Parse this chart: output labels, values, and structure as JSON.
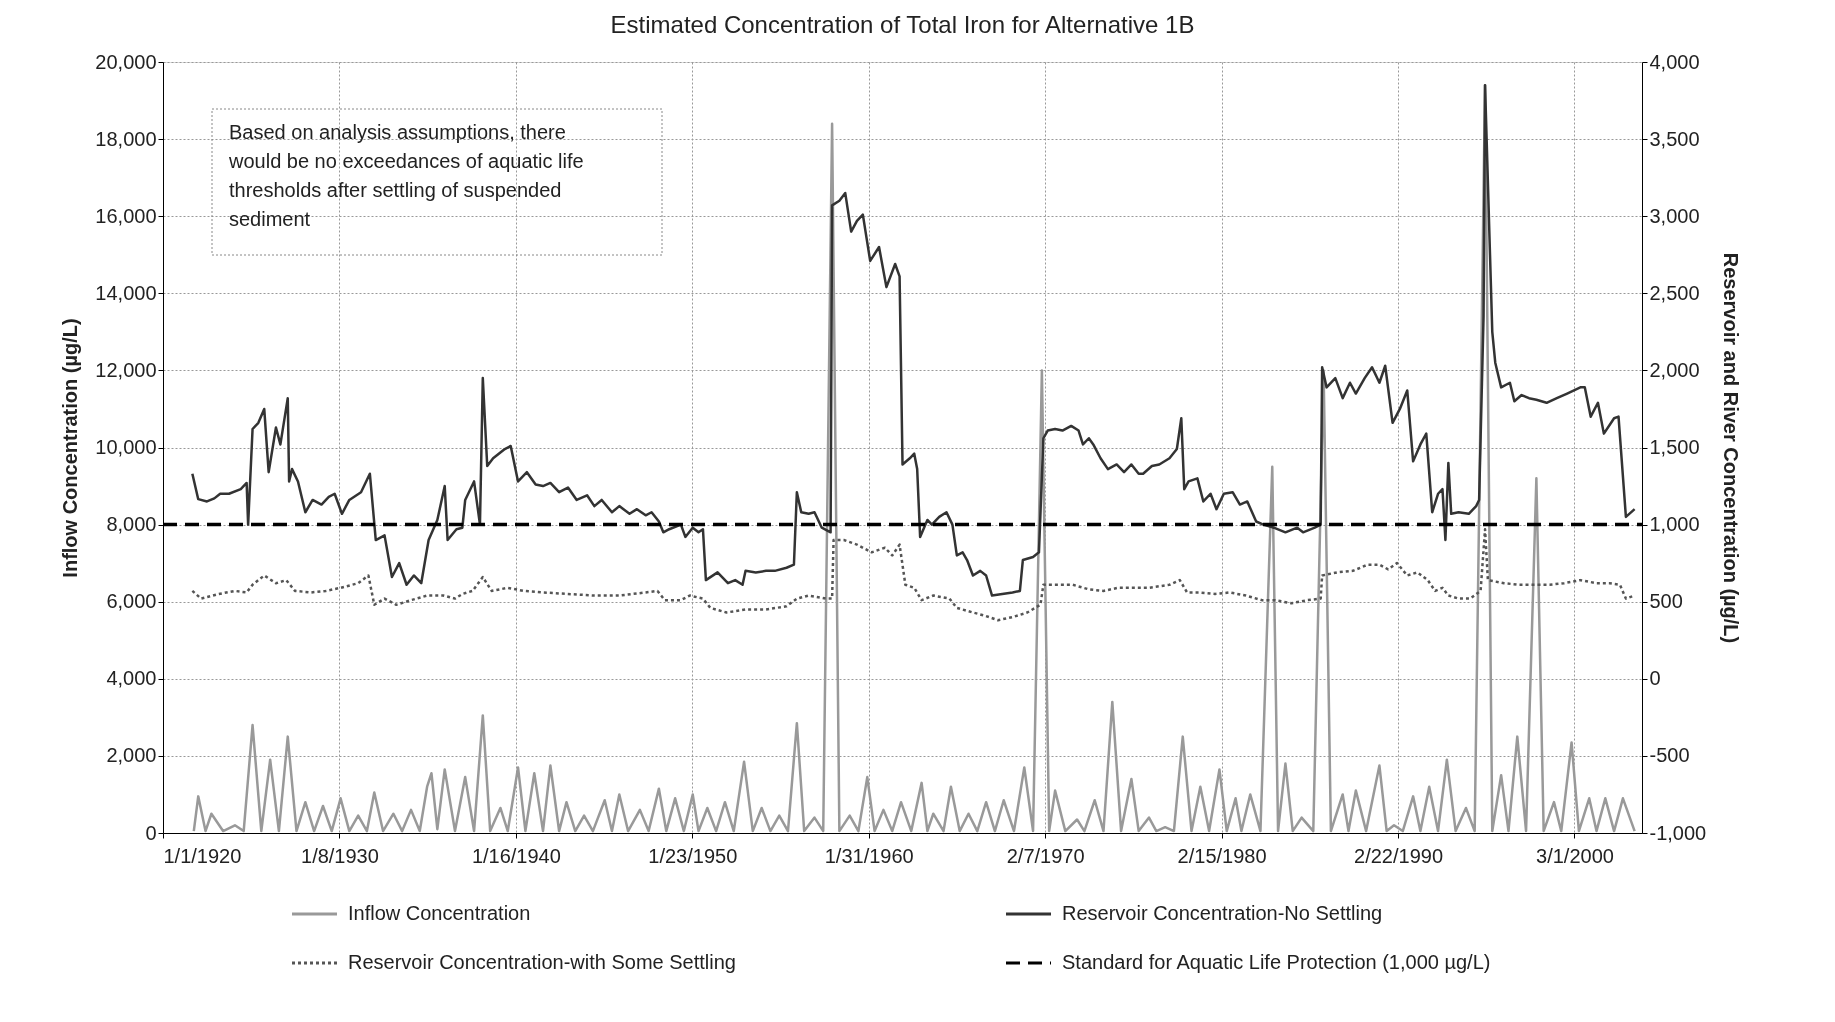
{
  "chart_data": {
    "type": "line",
    "title": "Estimated Concentration of Total Iron for Alternative 1B",
    "ylabel": "Inflow Concentration (µg/L)",
    "y2label": "Reservoir and River Concentration (µg/L)",
    "xlim": [
      "1920-01-01",
      "2004-01-01"
    ],
    "xticks": [
      {
        "value": "1920-01-01",
        "label": "1/1/1920"
      },
      {
        "value": "1930-01-08",
        "label": "1/8/1930"
      },
      {
        "value": "1940-01-16",
        "label": "1/16/1940"
      },
      {
        "value": "1950-01-23",
        "label": "1/23/1950"
      },
      {
        "value": "1960-01-31",
        "label": "1/31/1960"
      },
      {
        "value": "1970-02-07",
        "label": "2/7/1970"
      },
      {
        "value": "1980-02-15",
        "label": "2/15/1980"
      },
      {
        "value": "1990-02-22",
        "label": "2/22/1990"
      },
      {
        "value": "2000-03-01",
        "label": "3/1/2000"
      }
    ],
    "ylim": [
      0,
      20000
    ],
    "yticks": [
      0,
      {
        "value": 2000,
        "label": "2,000"
      },
      {
        "value": 4000,
        "label": "4,000"
      },
      {
        "value": 6000,
        "label": "6,000"
      },
      {
        "value": 8000,
        "label": "8,000"
      },
      {
        "value": 10000,
        "label": "10,000"
      },
      {
        "value": 12000,
        "label": "12,000"
      },
      {
        "value": 14000,
        "label": "14,000"
      },
      {
        "value": 16000,
        "label": "16,000"
      },
      {
        "value": 18000,
        "label": "18,000"
      },
      {
        "value": 20000,
        "label": "20,000"
      }
    ],
    "y2lim": [
      -1000,
      4000
    ],
    "y2ticks": [
      {
        "value": -1000,
        "label": "-1,000"
      },
      -500,
      0,
      500,
      {
        "value": 1000,
        "label": "1,000"
      },
      {
        "value": 1500,
        "label": "1,500"
      },
      {
        "value": 2000,
        "label": "2,000"
      },
      {
        "value": 2500,
        "label": "2,500"
      },
      {
        "value": 3000,
        "label": "3,000"
      },
      {
        "value": 3500,
        "label": "3,500"
      },
      {
        "value": 4000,
        "label": "4,000"
      }
    ],
    "grid": true,
    "legend": "bottom",
    "marker": "none",
    "annotations": [
      "Based on analysis assumptions, there would be no exceedances of aquatic life thresholds after settling of suspended sediment"
    ],
    "ref_lines": [
      {
        "axis": "y2",
        "value": 1000,
        "label": "Standard for Aquatic Life Protection (1,000 µg/L)",
        "color": "#000000",
        "line_style": "dashed"
      }
    ],
    "series": [
      {
        "name": "Inflow Concentration",
        "color": "#999999",
        "line_style": "solid",
        "x": [
          "1921-10",
          "1922-01",
          "1922-06",
          "1922-10",
          "1923-06",
          "1924-02",
          "1924-08",
          "1925-02",
          "1925-08",
          "1926-02",
          "1926-08",
          "1927-02",
          "1927-08",
          "1928-02",
          "1928-08",
          "1929-02",
          "1929-08",
          "1930-02",
          "1930-08",
          "1931-02",
          "1931-08",
          "1932-01",
          "1932-07",
          "1933-02",
          "1933-08",
          "1934-02",
          "1934-08",
          "1935-01",
          "1935-04",
          "1935-08",
          "1936-01",
          "1936-08",
          "1937-03",
          "1937-09",
          "1938-03",
          "1938-08",
          "1939-03",
          "1939-08",
          "1940-03",
          "1940-08",
          "1941-02",
          "1941-08",
          "1942-01",
          "1942-07",
          "1942-12",
          "1943-06",
          "1943-12",
          "1944-06",
          "1945-02",
          "1945-07",
          "1945-12",
          "1946-06",
          "1947-02",
          "1947-08",
          "1948-03",
          "1948-08",
          "1949-02",
          "1949-08",
          "1950-02",
          "1950-06",
          "1950-12",
          "1951-06",
          "1951-12",
          "1952-06",
          "1953-01",
          "1953-07",
          "1954-01",
          "1954-07",
          "1955-01",
          "1955-07",
          "1956-01",
          "1956-06",
          "1957-01",
          "1957-07",
          "1958-01",
          "1958-06",
          "1959-01",
          "1959-07",
          "1960-01",
          "1960-06",
          "1960-12",
          "1961-06",
          "1961-12",
          "1962-07",
          "1963-02",
          "1963-06",
          "1963-10",
          "1964-05",
          "1964-10",
          "1965-04",
          "1965-10",
          "1966-04",
          "1966-10",
          "1967-04",
          "1967-10",
          "1968-05",
          "1968-12",
          "1969-06",
          "1969-12",
          "1970-05",
          "1970-09",
          "1971-04",
          "1971-12",
          "1972-05",
          "1972-12",
          "1973-06",
          "1973-12",
          "1974-06",
          "1975-01",
          "1975-06",
          "1976-01",
          "1976-06",
          "1976-12",
          "1977-06",
          "1977-12",
          "1978-06",
          "1978-12",
          "1979-06",
          "1980-01",
          "1980-06",
          "1980-12",
          "1981-04",
          "1981-10",
          "1982-05",
          "1983-01",
          "1983-05",
          "1983-10",
          "1984-03",
          "1984-09",
          "1985-05",
          "1985-12",
          "1986-05",
          "1987-01",
          "1987-05",
          "1987-10",
          "1988-05",
          "1989-02",
          "1989-07",
          "1989-12",
          "1990-06",
          "1991-01",
          "1991-06",
          "1991-12",
          "1992-06",
          "1992-12",
          "1993-06",
          "1994-01",
          "1994-07",
          "1995-02",
          "1995-07",
          "1996-01",
          "1996-06",
          "1996-12",
          "1997-06",
          "1998-01",
          "1998-06",
          "1999-01",
          "1999-06",
          "2000-01",
          "2000-06",
          "2001-01",
          "2001-06",
          "2001-12",
          "2002-06",
          "2002-12",
          "2003-08"
        ],
        "values": [
          50,
          950,
          50,
          500,
          50,
          200,
          50,
          2800,
          50,
          1900,
          50,
          2500,
          50,
          800,
          50,
          700,
          50,
          900,
          50,
          450,
          50,
          1050,
          50,
          500,
          50,
          600,
          50,
          1200,
          1550,
          100,
          1650,
          50,
          1450,
          50,
          3050,
          50,
          650,
          50,
          1700,
          50,
          1550,
          50,
          1750,
          50,
          800,
          50,
          450,
          50,
          850,
          50,
          1000,
          50,
          600,
          50,
          1150,
          50,
          900,
          50,
          1000,
          50,
          650,
          50,
          800,
          50,
          1850,
          50,
          650,
          50,
          450,
          50,
          2850,
          50,
          400,
          50,
          18400,
          50,
          450,
          50,
          1450,
          50,
          600,
          50,
          800,
          50,
          1300,
          50,
          500,
          50,
          1200,
          50,
          500,
          50,
          800,
          50,
          850,
          50,
          1700,
          50,
          12000,
          50,
          1100,
          50,
          350,
          50,
          850,
          50,
          3400,
          50,
          1400,
          50,
          400,
          50,
          150,
          50,
          2500,
          50,
          1200,
          50,
          1650,
          50,
          900,
          50,
          1000,
          50,
          9500,
          50,
          1800,
          50,
          400,
          50,
          12000,
          50,
          1000,
          50,
          1100,
          50,
          1750,
          50,
          200,
          50,
          950,
          50,
          1200,
          50,
          1900,
          50,
          650,
          50,
          19400,
          50,
          1500,
          50,
          2500,
          50,
          9200,
          50,
          800,
          50,
          2350,
          50,
          900,
          50,
          900,
          50,
          900,
          50
        ]
      },
      {
        "name": "Reservoir Concentration-No Settling",
        "color": "#333333",
        "line_style": "solid",
        "axis": "y2",
        "x": [
          "1921-09",
          "1922-01",
          "1922-07",
          "1922-12",
          "1923-04",
          "1923-10",
          "1924-06",
          "1924-10",
          "1924-11",
          "1925-02",
          "1925-06",
          "1925-10",
          "1926-01",
          "1926-06",
          "1926-09",
          "1927-02",
          "1927-03",
          "1927-05",
          "1927-09",
          "1928-02",
          "1928-07",
          "1929-01",
          "1929-06",
          "1929-10",
          "1930-03",
          "1930-08",
          "1931-04",
          "1931-10",
          "1932-02",
          "1932-08",
          "1933-01",
          "1933-06",
          "1933-11",
          "1934-04",
          "1934-09",
          "1935-02",
          "1935-08",
          "1936-01",
          "1936-03",
          "1936-09",
          "1937-01",
          "1937-03",
          "1937-09",
          "1938-01",
          "1938-03",
          "1938-06",
          "1938-10",
          "1939-06",
          "1939-10",
          "1940-03",
          "1940-09",
          "1941-03",
          "1941-08",
          "1942-01",
          "1942-07",
          "1943-01",
          "1943-07",
          "1944-02",
          "1944-07",
          "1944-12",
          "1945-07",
          "1945-12",
          "1946-07",
          "1946-12",
          "1947-06",
          "1947-10",
          "1948-03",
          "1948-06",
          "1948-10",
          "1949-06",
          "1949-09",
          "1950-02",
          "1950-06",
          "1950-09",
          "1950-11",
          "1951-07",
          "1952-02",
          "1952-07",
          "1952-12",
          "1953-02",
          "1953-09",
          "1954-04",
          "1954-10",
          "1955-06",
          "1955-11",
          "1956-01",
          "1956-04",
          "1956-09",
          "1957-01",
          "1957-06",
          "1957-12",
          "1958-01",
          "1958-06",
          "1958-10",
          "1959-02",
          "1959-06",
          "1959-10",
          "1960-03",
          "1960-09",
          "1961-02",
          "1961-08",
          "1961-11",
          "1962-01",
          "1962-06",
          "1962-09",
          "1962-11",
          "1963-01",
          "1963-06",
          "1963-09",
          "1964-02",
          "1964-07",
          "1964-11",
          "1965-02",
          "1965-06",
          "1965-09",
          "1966-01",
          "1966-06",
          "1966-10",
          "1967-02",
          "1967-09",
          "1968-04",
          "1968-09",
          "1968-11",
          "1969-06",
          "1969-10",
          "1970-01",
          "1970-04",
          "1970-09",
          "1971-02",
          "1971-08",
          "1972-01",
          "1972-04",
          "1972-08",
          "1972-11",
          "1973-04",
          "1973-09",
          "1974-03",
          "1974-08",
          "1975-01",
          "1975-06",
          "1975-09",
          "1976-03",
          "1976-08",
          "1977-03",
          "1977-08",
          "1977-11",
          "1978-01",
          "1978-04",
          "1978-10",
          "1979-02",
          "1979-07",
          "1979-11",
          "1980-04",
          "1980-10",
          "1981-03",
          "1981-08",
          "1982-02",
          "1982-07",
          "1983-02",
          "1983-10",
          "1984-06",
          "1984-10",
          "1985-06",
          "1985-10",
          "1985-11",
          "1986-02",
          "1986-08",
          "1987-01",
          "1987-06",
          "1987-10",
          "1988-04",
          "1988-09",
          "1989-02",
          "1989-06",
          "1989-11",
          "1990-04",
          "1990-09",
          "1991-01",
          "1991-06",
          "1991-10",
          "1992-02",
          "1992-06",
          "1992-09",
          "1992-11",
          "1993-01",
          "1993-03",
          "1993-08",
          "1994-03",
          "1994-08",
          "1994-10",
          "1995-01",
          "1995-02",
          "1995-07",
          "1995-09",
          "1996-01",
          "1996-07",
          "1996-10",
          "1997-03",
          "1997-08",
          "1998-01",
          "1998-08",
          "1999-03",
          "1999-10",
          "2000-07",
          "2000-10",
          "2001-02",
          "2001-07",
          "2001-11",
          "2002-06",
          "2002-09",
          "2003-02",
          "2003-08"
        ],
        "values": [
          1330,
          1165,
          1150,
          1170,
          1200,
          1200,
          1230,
          1270,
          1000,
          1620,
          1660,
          1750,
          1340,
          1630,
          1520,
          1820,
          1280,
          1360,
          1280,
          1080,
          1160,
          1130,
          1180,
          1200,
          1070,
          1160,
          1210,
          1330,
          900,
          930,
          660,
          750,
          610,
          670,
          620,
          900,
          1030,
          1250,
          900,
          970,
          980,
          1160,
          1280,
          1000,
          1950,
          1380,
          1430,
          1490,
          1510,
          1280,
          1340,
          1260,
          1250,
          1270,
          1210,
          1240,
          1160,
          1190,
          1120,
          1160,
          1080,
          1120,
          1070,
          1100,
          1060,
          1080,
          1020,
          950,
          970,
          1000,
          920,
          980,
          950,
          970,
          640,
          690,
          620,
          640,
          610,
          700,
          690,
          700,
          700,
          720,
          740,
          1210,
          1080,
          1070,
          1080,
          980,
          950,
          3070,
          3100,
          3150,
          2900,
          2970,
          3010,
          2710,
          2800,
          2540,
          2690,
          2610,
          1390,
          1430,
          1460,
          1360,
          920,
          1030,
          1000,
          1050,
          1080,
          1000,
          800,
          820,
          770,
          670,
          700,
          670,
          540,
          550,
          560,
          570,
          770,
          790,
          820,
          1560,
          1610,
          1620,
          1610,
          1640,
          1610,
          1520,
          1560,
          1520,
          1430,
          1360,
          1390,
          1340,
          1390,
          1330,
          1330,
          1380,
          1390,
          1430,
          1490,
          1690,
          1230,
          1280,
          1300,
          1150,
          1200,
          1100,
          1200,
          1210,
          1130,
          1150,
          1020,
          1000,
          980,
          950,
          980,
          950,
          980,
          1000,
          2020,
          1890,
          1950,
          1820,
          1920,
          1850,
          1950,
          2020,
          1920,
          2030,
          1660,
          1750,
          1870,
          1410,
          1520,
          1590,
          1080,
          1200,
          1230,
          900,
          1400,
          1070,
          1080,
          1070,
          1120,
          1160,
          2350,
          3850,
          2250,
          2050,
          1890,
          1920,
          1800,
          1840,
          1820,
          1810,
          1790,
          1820,
          1850,
          1890,
          1890,
          1700,
          1790,
          1590,
          1690,
          1700,
          1050,
          1100
        ]
      },
      {
        "name": "Reservoir Concentration-with Some Settling",
        "color": "#555555",
        "line_style": "dotted",
        "axis": "y2",
        "x": [
          "1921-09",
          "1922-03",
          "1923-03",
          "1924-02",
          "1924-10",
          "1925-02",
          "1925-10",
          "1926-06",
          "1927-01",
          "1927-07",
          "1928-06",
          "1929-04",
          "1930-02",
          "1931-02",
          "1931-09",
          "1932-01",
          "1932-08",
          "1933-04",
          "1934-02",
          "1935-01",
          "1935-12",
          "1936-08",
          "1937-01",
          "1937-08",
          "1938-03",
          "1938-09",
          "1939-08",
          "1940-07",
          "1941-08",
          "1943-01",
          "1944-07",
          "1945-12",
          "1947-06",
          "1948-02",
          "1948-07",
          "1949-06",
          "1949-12",
          "1950-09",
          "1951-02",
          "1952-01",
          "1953-02",
          "1954-04",
          "1955-06",
          "1956-01",
          "1956-09",
          "1957-09",
          "1958-01",
          "1958-02",
          "1958-09",
          "1959-06",
          "1960-04",
          "1961-01",
          "1961-06",
          "1961-11",
          "1962-03",
          "1962-09",
          "1963-02",
          "1963-10",
          "1964-09",
          "1965-02",
          "1966-01",
          "1966-09",
          "1967-06",
          "1968-04",
          "1969-02",
          "1969-11",
          "1970-01",
          "1970-11",
          "1971-09",
          "1972-08",
          "1973-06",
          "1974-04",
          "1975-03",
          "1976-01",
          "1977-03",
          "1977-10",
          "1978-03",
          "1978-11",
          "1979-10",
          "1980-08",
          "1981-07",
          "1982-06",
          "1983-03",
          "1984-02",
          "1985-01",
          "1985-10",
          "1985-11",
          "1986-09",
          "1987-08",
          "1988-06",
          "1989-02",
          "1989-08",
          "1990-02",
          "1990-09",
          "1991-04",
          "1991-11",
          "1992-04",
          "1992-09",
          "1993-01",
          "1993-08",
          "1994-04",
          "1994-11",
          "1995-02",
          "1995-04",
          "1996-03",
          "1997-01",
          "1997-11",
          "1998-10",
          "1999-08",
          "2000-07",
          "2001-06",
          "2002-03",
          "2002-10",
          "2003-02",
          "2003-08"
        ],
        "values": [
          570,
          520,
          550,
          570,
          560,
          610,
          670,
          620,
          640,
          570,
          560,
          570,
          590,
          620,
          670,
          480,
          520,
          480,
          510,
          540,
          540,
          520,
          550,
          570,
          660,
          570,
          590,
          570,
          560,
          550,
          540,
          540,
          560,
          570,
          510,
          510,
          540,
          520,
          460,
          430,
          450,
          450,
          470,
          520,
          540,
          520,
          520,
          900,
          900,
          870,
          820,
          850,
          800,
          870,
          610,
          590,
          510,
          540,
          520,
          460,
          430,
          410,
          380,
          400,
          430,
          480,
          610,
          610,
          610,
          580,
          570,
          590,
          590,
          590,
          610,
          640,
          560,
          560,
          550,
          560,
          540,
          510,
          510,
          490,
          510,
          520,
          670,
          690,
          700,
          740,
          740,
          710,
          750,
          670,
          690,
          640,
          570,
          590,
          540,
          520,
          520,
          570,
          970,
          640,
          620,
          610,
          610,
          610,
          620,
          640,
          620,
          620,
          610,
          520,
          540
        ]
      }
    ]
  }
}
